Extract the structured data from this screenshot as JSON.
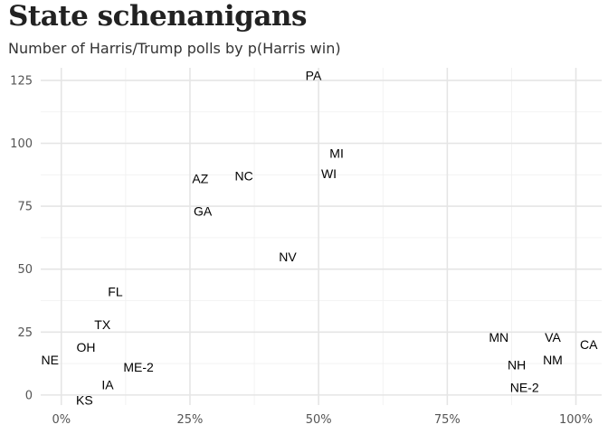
{
  "title": "State schenanigans",
  "subtitle": "Number of Harris/Trump polls by p(Harris win)",
  "chart_data": {
    "type": "scatter",
    "point_style": "text labels",
    "title": "State schenanigans",
    "subtitle": "Number of Harris/Trump polls by p(Harris win)",
    "xlabel": "",
    "ylabel": "",
    "xlim": [
      -0.04,
      1.05
    ],
    "ylim": [
      -4,
      130
    ],
    "x_ticks": [
      0,
      0.25,
      0.5,
      0.75,
      1.0
    ],
    "x_tick_labels": [
      "0%",
      "25%",
      "50%",
      "75%",
      "100%"
    ],
    "y_ticks": [
      0,
      25,
      50,
      75,
      100,
      125
    ],
    "y_tick_labels": [
      "0",
      "25",
      "50",
      "75",
      "100",
      "125"
    ],
    "grid": true,
    "points": [
      {
        "label": "PA",
        "x": 0.49,
        "y": 127
      },
      {
        "label": "MI",
        "x": 0.535,
        "y": 96
      },
      {
        "label": "WI",
        "x": 0.52,
        "y": 88
      },
      {
        "label": "NC",
        "x": 0.355,
        "y": 87
      },
      {
        "label": "AZ",
        "x": 0.27,
        "y": 86
      },
      {
        "label": "GA",
        "x": 0.275,
        "y": 73
      },
      {
        "label": "NV",
        "x": 0.44,
        "y": 55
      },
      {
        "label": "FL",
        "x": 0.105,
        "y": 41
      },
      {
        "label": "TX",
        "x": 0.08,
        "y": 28
      },
      {
        "label": "OH",
        "x": 0.048,
        "y": 19
      },
      {
        "label": "NE",
        "x": -0.022,
        "y": 14
      },
      {
        "label": "ME-2",
        "x": 0.15,
        "y": 11
      },
      {
        "label": "IA",
        "x": 0.09,
        "y": 4
      },
      {
        "label": "KS",
        "x": 0.045,
        "y": -2
      },
      {
        "label": "MN",
        "x": 0.85,
        "y": 23
      },
      {
        "label": "VA",
        "x": 0.955,
        "y": 23
      },
      {
        "label": "CA",
        "x": 1.025,
        "y": 20
      },
      {
        "label": "NM",
        "x": 0.955,
        "y": 14
      },
      {
        "label": "NH",
        "x": 0.885,
        "y": 12
      },
      {
        "label": "NE-2",
        "x": 0.9,
        "y": 3
      }
    ],
    "colors": {
      "background": "#ffffff",
      "grid": "#e5e5e5",
      "text": "#000000",
      "axis_text": "#555555"
    }
  }
}
